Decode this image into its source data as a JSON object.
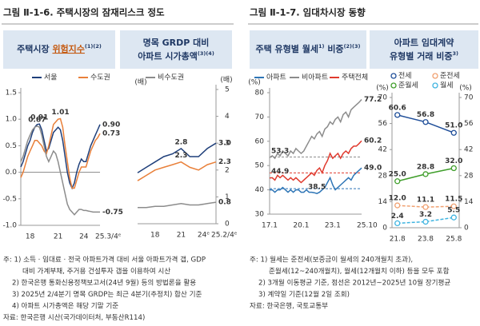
{
  "figures": [
    {
      "title": "그림 Ⅱ-1-6. 주택시장의 잠재리스크 정도",
      "notes": [
        "주: 1) 소득 · 임대료 · 전국 아파트가격 대비 서울 아파트가격 갭, GDP",
        "대비 가계부채, 주거용 건설투자 갭을 이용하여 시산",
        "2) 한국은행 통화신용정책보고서(24년 9월) 등의 방법론을 활용",
        "3) 2025년 2/4분기 명목 GRDP는 최근 4분기(추정치) 합산 기준",
        "4) 아파트 시가총액은 해당 기말 기준",
        "자료: 한국은행 시산(국가데이터처, 부동산R114)"
      ]
    },
    {
      "title": "그림 Ⅱ-1-7. 임대차시장 동향",
      "notes": [
        "주: 1) 월세는 준전세(보증금이 월세의 240개월치 초과),",
        "준월세(12~240개월치), 월세(12개월치 이하) 등을 모두 포함",
        "2) 3개월 이동평균 기준, 점선은 2012년~2025년 10월 장기평균",
        "3) 계약일 기준(12월 2일 조회)",
        "자료: 한국은행, 국토교통부"
      ]
    }
  ],
  "chart_data": [
    {
      "type": "line",
      "header": {
        "text": "주택시장 ",
        "highlight": "위험지수",
        "sup": "(1)(2)"
      },
      "categories": [
        null,
        null,
        null,
        null,
        "18",
        null,
        null,
        null,
        null,
        null,
        null,
        null,
        null,
        null,
        null,
        null,
        "21",
        null,
        null,
        null,
        null,
        null,
        null,
        null,
        null,
        null,
        null,
        null,
        "24",
        null,
        null,
        null,
        null,
        null,
        "25.3/4ᵉ"
      ],
      "series": [
        {
          "name": "서울",
          "color": "#1f3f7a",
          "values": [
            0.1,
            0.2,
            0.35,
            0.5,
            0.6,
            0.75,
            0.85,
            0.9,
            0.91,
            0.8,
            0.6,
            0.4,
            0.45,
            0.6,
            0.75,
            0.8,
            0.85,
            0.8,
            0.6,
            0.3,
            0.0,
            -0.2,
            -0.3,
            -0.2,
            0.0,
            0.15,
            0.25,
            0.2,
            0.2,
            0.35,
            0.5,
            0.6,
            0.7,
            0.8,
            0.9
          ],
          "value_labels": [
            null,
            null,
            null,
            null,
            null,
            null,
            null,
            null,
            "0.91",
            null,
            null,
            null,
            null,
            null,
            null,
            null,
            null,
            null,
            null,
            null,
            null,
            null,
            null,
            null,
            null,
            null,
            null,
            null,
            null,
            null,
            null,
            null,
            null,
            null,
            "0.90"
          ]
        },
        {
          "name": "수도권",
          "color": "#e9803a",
          "values": [
            -0.1,
            0.0,
            0.15,
            0.3,
            0.4,
            0.5,
            0.6,
            0.6,
            0.55,
            0.5,
            0.4,
            0.35,
            0.5,
            0.7,
            0.9,
            0.95,
            1.0,
            1.01,
            0.85,
            0.5,
            0.2,
            -0.1,
            -0.3,
            -0.3,
            -0.15,
            0.0,
            0.1,
            0.1,
            0.1,
            0.25,
            0.4,
            0.5,
            0.6,
            0.65,
            0.73
          ],
          "value_labels": [
            null,
            null,
            null,
            null,
            null,
            null,
            null,
            null,
            null,
            null,
            null,
            null,
            null,
            null,
            null,
            null,
            null,
            "1.01",
            null,
            null,
            null,
            null,
            null,
            null,
            null,
            null,
            null,
            null,
            null,
            null,
            null,
            null,
            null,
            null,
            "0.73"
          ]
        },
        {
          "name": "비수도권",
          "color": "#8c8c8c",
          "values": [
            0.2,
            0.3,
            0.45,
            0.6,
            0.7,
            0.8,
            0.85,
            0.87,
            0.85,
            0.7,
            0.5,
            0.3,
            0.2,
            0.3,
            0.4,
            0.35,
            0.2,
            0.0,
            -0.2,
            -0.4,
            -0.6,
            -0.7,
            -0.75,
            -0.8,
            -0.75,
            -0.7,
            -0.7,
            -0.72,
            -0.72,
            -0.73,
            -0.74,
            -0.75,
            -0.75,
            -0.75,
            -0.75
          ],
          "value_labels": [
            null,
            null,
            null,
            null,
            null,
            null,
            null,
            "0.87",
            null,
            null,
            null,
            null,
            null,
            null,
            null,
            null,
            null,
            null,
            null,
            null,
            null,
            null,
            null,
            null,
            null,
            null,
            null,
            null,
            null,
            null,
            null,
            null,
            null,
            null,
            "-0.75"
          ]
        }
      ],
      "ylim": [
        -1,
        1.5
      ],
      "yticks": [
        {
          "value": -1,
          "label": "-1.0"
        },
        -0.5,
        {
          "value": 0,
          "label": "0.0"
        },
        0.5,
        {
          "value": 1,
          "label": "1.0"
        },
        1.5
      ],
      "zero_line": true,
      "legend": true
    },
    {
      "type": "line",
      "header": {
        "text": "명목 GRDP 대비",
        "text2": "아파트 시가총액",
        "sup": "(3)(4)"
      },
      "y_unit": "(배)",
      "categories": [
        null,
        null,
        "18",
        null,
        null,
        "21",
        null,
        null,
        "24ᵉ",
        "25.2/4ᵉ"
      ],
      "series": [
        {
          "color": "#1f3f7a",
          "values": [
            1.9,
            2.1,
            2.3,
            2.5,
            2.6,
            2.8,
            2.5,
            2.5,
            2.8,
            3.0
          ],
          "value_labels": [
            null,
            null,
            null,
            null,
            null,
            "2.8",
            null,
            null,
            null,
            "3.0"
          ]
        },
        {
          "color": "#e9803a",
          "values": [
            1.6,
            1.8,
            2.0,
            2.1,
            2.2,
            2.3,
            2.1,
            2.0,
            2.2,
            2.3
          ],
          "value_labels": [
            null,
            null,
            null,
            null,
            null,
            "2.3",
            null,
            null,
            null,
            "2.3"
          ]
        },
        {
          "color": "#8c8c8c",
          "values": [
            0.6,
            0.6,
            0.65,
            0.65,
            0.7,
            0.75,
            0.7,
            0.7,
            0.75,
            0.8
          ],
          "value_labels": [
            null,
            null,
            null,
            null,
            null,
            null,
            null,
            null,
            null,
            "0.8"
          ]
        }
      ],
      "ylim": [
        0,
        5
      ],
      "yticks": [
        0,
        1,
        2,
        3,
        4,
        5
      ],
      "y_axis_side": "right"
    },
    {
      "type": "line",
      "header": {
        "text": "주택 유형별 월세",
        "sup": "1)",
        "text3": " 비중",
        "sup2": "(2)(3)"
      },
      "y_unit": "(%)",
      "categories": [
        "17.1",
        null,
        null,
        null,
        null,
        null,
        null,
        null,
        null,
        null,
        null,
        null,
        "20.1",
        null,
        null,
        null,
        null,
        null,
        null,
        null,
        null,
        null,
        null,
        null,
        "23.1",
        null,
        null,
        null,
        null,
        null,
        null,
        null,
        null,
        null,
        null,
        "25.10"
      ],
      "series": [
        {
          "name": "아파트",
          "color": "#2e75b6",
          "values": [
            40,
            40,
            39,
            40,
            40,
            41,
            40,
            39,
            40,
            39,
            40,
            40,
            39,
            39,
            40,
            39,
            39,
            38.8,
            38.5,
            39,
            40,
            41,
            43,
            45,
            42,
            40,
            41,
            42,
            43,
            44,
            45,
            44,
            46,
            47,
            48,
            49.0
          ],
          "value_labels": [
            null,
            null,
            null,
            null,
            null,
            null,
            null,
            null,
            null,
            null,
            null,
            null,
            null,
            null,
            null,
            null,
            null,
            null,
            "38.5",
            null,
            null,
            null,
            null,
            null,
            null,
            null,
            null,
            null,
            null,
            null,
            null,
            null,
            null,
            null,
            null,
            "49.0"
          ]
        },
        {
          "name": "비아파트",
          "color": "#8c8c8c",
          "values": [
            53.3,
            54,
            53,
            55,
            54,
            56,
            55,
            54,
            56,
            55,
            57,
            56,
            55,
            56,
            58,
            60,
            62,
            61,
            63,
            64,
            62,
            65,
            66,
            68,
            67,
            69,
            70,
            68,
            71,
            72,
            70,
            73,
            74,
            75,
            76,
            77.2
          ],
          "value_labels": [
            "53.3",
            null,
            null,
            null,
            null,
            null,
            null,
            null,
            null,
            null,
            null,
            null,
            null,
            null,
            null,
            null,
            null,
            null,
            null,
            null,
            null,
            null,
            null,
            null,
            null,
            null,
            null,
            null,
            null,
            null,
            null,
            null,
            null,
            null,
            null,
            "77.2"
          ]
        },
        {
          "name": "주택전체",
          "color": "#e03a2e",
          "values": [
            44.9,
            45,
            44,
            46,
            45,
            46,
            45,
            44,
            45,
            44,
            45,
            44,
            43,
            44,
            45,
            46,
            47,
            46,
            48,
            49,
            47,
            50,
            52,
            55,
            53,
            54,
            55,
            53,
            55,
            56,
            55,
            57,
            58,
            58,
            59,
            60.2
          ],
          "value_labels": [
            "44.9",
            null,
            null,
            null,
            null,
            null,
            null,
            null,
            null,
            null,
            null,
            null,
            null,
            null,
            null,
            null,
            null,
            null,
            null,
            null,
            null,
            null,
            null,
            null,
            null,
            null,
            null,
            null,
            null,
            null,
            null,
            null,
            null,
            null,
            null,
            "60.2"
          ]
        }
      ],
      "reference_lines": [
        {
          "value": 53.5,
          "color": "#8c8c8c"
        },
        {
          "value": 47,
          "color": "#e03a2e"
        },
        {
          "value": 40.5,
          "color": "#2e75b6"
        }
      ],
      "ylim": [
        30,
        80
      ],
      "yticks": [
        30,
        40,
        50,
        60,
        70,
        80
      ],
      "y_axis_side": "left",
      "legend": true
    },
    {
      "type": "line",
      "header": {
        "text": "아파트 임대계약",
        "text2": "유형별 거래 비중",
        "sup": "3)"
      },
      "y_unit": "(%)",
      "categories": [
        "21.8",
        "23.8",
        "25.8"
      ],
      "series": [
        {
          "name": "전세",
          "color": "#1f4e99",
          "values": [
            60.6,
            56.8,
            51.0
          ],
          "value_labels": [
            "60.6",
            "56.8",
            "51.0"
          ]
        },
        {
          "name": "준전세",
          "color": "#f0a070",
          "dash": true,
          "values": [
            12.0,
            11.1,
            11.5
          ],
          "value_labels": [
            "12.0",
            "11.1",
            "11.5"
          ]
        },
        {
          "name": "준월세",
          "color": "#3f9e2a",
          "values": [
            25.0,
            28.8,
            32.0
          ],
          "value_labels": [
            "25.0",
            "28.8",
            "32.0"
          ]
        },
        {
          "name": "월세",
          "color": "#3fb4e0",
          "dash": true,
          "values": [
            2.4,
            3.2,
            5.5
          ],
          "value_labels": [
            "2.4",
            "3.2",
            "5.5"
          ]
        }
      ],
      "ylim": [
        0,
        70
      ],
      "yticks": [
        0,
        14,
        28,
        42,
        56,
        70
      ],
      "y_axis_side": "both",
      "markers": true,
      "legend": true
    }
  ]
}
